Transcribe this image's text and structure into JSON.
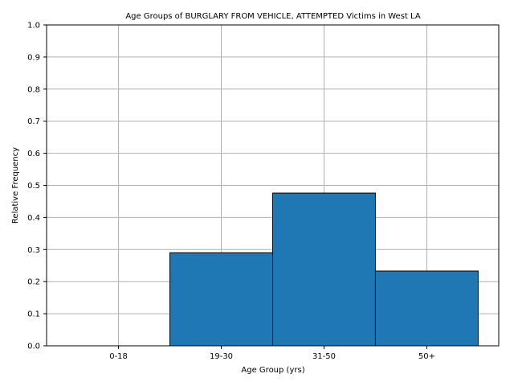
{
  "chart_data": {
    "type": "bar",
    "title": "Age Groups of BURGLARY FROM VEHICLE, ATTEMPTED Victims in West LA",
    "xlabel": "Age Group (yrs)",
    "ylabel": "Relative Frequency",
    "categories": [
      "0-18",
      "19-30",
      "31-50",
      "50+"
    ],
    "values": [
      0.0,
      0.29,
      0.476,
      0.233
    ],
    "ylim": [
      0,
      1.0
    ],
    "yticks": [
      "0.0",
      "0.1",
      "0.2",
      "0.3",
      "0.4",
      "0.5",
      "0.6",
      "0.7",
      "0.8",
      "0.9",
      "1.0"
    ],
    "grid": true,
    "bar_color": "#1f77b4",
    "edge_color": "#000000",
    "grid_color": "#b0b0b0"
  }
}
